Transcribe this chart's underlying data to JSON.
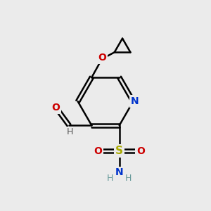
{
  "background_color": "#ebebeb",
  "bond_color": "#000000",
  "atom_colors": {
    "N_ring": "#0033cc",
    "N_amine": "#0033cc",
    "O": "#cc0000",
    "S": "#aaaa00",
    "C": "#000000",
    "H": "#555555",
    "H_amine": "#669999"
  }
}
